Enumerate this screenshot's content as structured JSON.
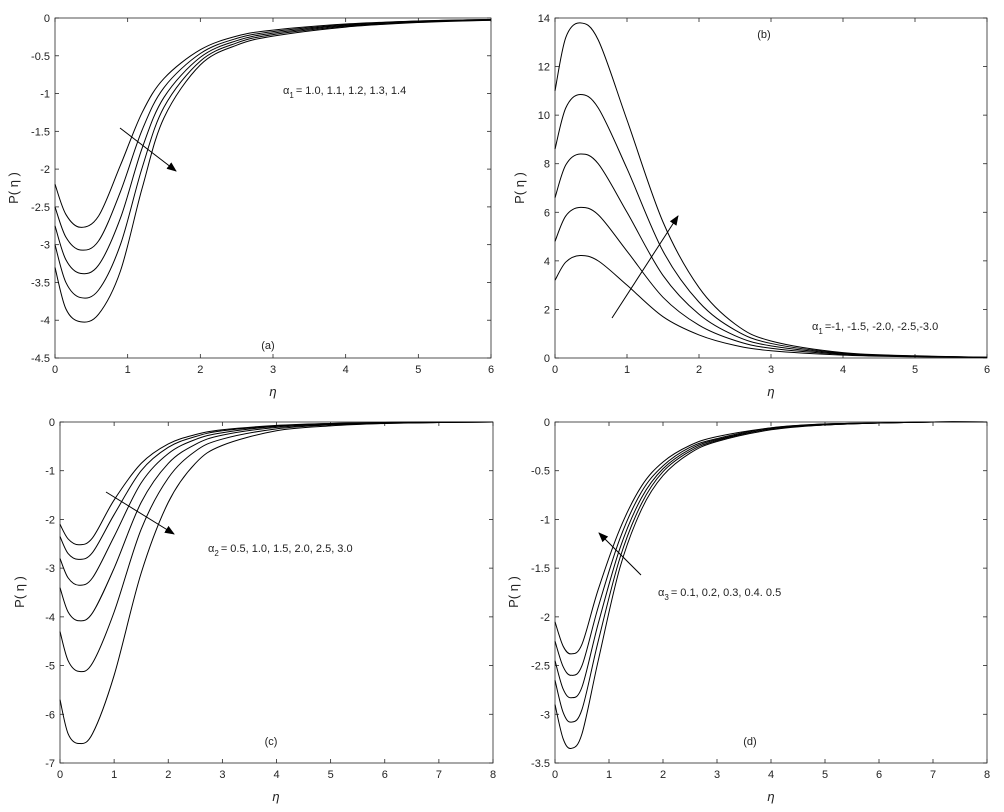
{
  "figure": {
    "panels": [
      {
        "tag": "(a)",
        "annotation_symbol": "α",
        "annotation_sub": "1",
        "annotation_text": "= 1.0, 1.1, 1.2, 1.3, 1.4"
      },
      {
        "tag": "(b)",
        "annotation_symbol": "α",
        "annotation_sub": "1",
        "annotation_text": "=-1, -1.5, -2.0, -2.5,-3.0"
      },
      {
        "tag": "(c)",
        "annotation_symbol": "α",
        "annotation_sub": "2",
        "annotation_text": "= 0.5, 1.0, 1.5, 2.0, 2.5, 3.0"
      },
      {
        "tag": "(d)",
        "annotation_symbol": "α",
        "annotation_sub": "3",
        "annotation_text": "= 0.1, 0.2, 0.3, 0.4. 0.5"
      }
    ]
  },
  "chart_data": [
    {
      "type": "line",
      "panel": "(a)",
      "xlabel": "η",
      "ylabel": "P( η )",
      "xlim": [
        0,
        6
      ],
      "ylim": [
        -4.5,
        0
      ],
      "xticks": [
        "0",
        "1",
        "2",
        "3",
        "4",
        "5",
        "6"
      ],
      "yticks": [
        "0",
        "-0.5",
        "-1",
        "-1.5",
        "-2",
        "-2.5",
        "-3",
        "-3.5",
        "-4",
        "-4.5"
      ],
      "annotation": "α1 = 1.0, 1.1, 1.2, 1.3, 1.4",
      "arrow_direction": "increasing α1 shifts curves right/down",
      "series": [
        {
          "param": 1.0,
          "x": [
            0,
            0.15,
            0.35,
            0.6,
            0.9,
            1.2,
            1.5,
            2.0,
            2.5,
            3.0,
            4.0,
            5.0,
            6.0
          ],
          "y": [
            -2.2,
            -2.6,
            -2.77,
            -2.62,
            -1.95,
            -1.25,
            -0.8,
            -0.42,
            -0.24,
            -0.16,
            -0.08,
            -0.04,
            -0.02
          ]
        },
        {
          "param": 1.1,
          "x": [
            0,
            0.15,
            0.35,
            0.6,
            0.9,
            1.2,
            1.5,
            2.0,
            2.5,
            3.0,
            4.0,
            5.0,
            6.0
          ],
          "y": [
            -2.5,
            -2.9,
            -3.07,
            -2.95,
            -2.3,
            -1.48,
            -0.92,
            -0.47,
            -0.27,
            -0.18,
            -0.09,
            -0.04,
            -0.02
          ]
        },
        {
          "param": 1.2,
          "x": [
            0,
            0.15,
            0.35,
            0.6,
            0.9,
            1.2,
            1.5,
            2.0,
            2.5,
            3.0,
            4.0,
            5.0,
            6.0
          ],
          "y": [
            -2.75,
            -3.2,
            -3.38,
            -3.27,
            -2.65,
            -1.72,
            -1.05,
            -0.52,
            -0.3,
            -0.2,
            -0.1,
            -0.05,
            -0.02
          ]
        },
        {
          "param": 1.3,
          "x": [
            0,
            0.15,
            0.35,
            0.6,
            0.9,
            1.2,
            1.5,
            2.0,
            2.5,
            3.0,
            4.0,
            5.0,
            6.0
          ],
          "y": [
            -3.0,
            -3.5,
            -3.7,
            -3.6,
            -3.0,
            -1.98,
            -1.18,
            -0.57,
            -0.33,
            -0.22,
            -0.11,
            -0.05,
            -0.03
          ]
        },
        {
          "param": 1.4,
          "x": [
            0,
            0.15,
            0.35,
            0.6,
            0.9,
            1.2,
            1.5,
            2.0,
            2.5,
            3.0,
            4.0,
            5.0,
            6.0
          ],
          "y": [
            -3.3,
            -3.85,
            -4.02,
            -3.92,
            -3.35,
            -2.25,
            -1.32,
            -0.62,
            -0.36,
            -0.24,
            -0.12,
            -0.06,
            -0.03
          ]
        }
      ]
    },
    {
      "type": "line",
      "panel": "(b)",
      "xlabel": "η",
      "ylabel": "P( η )",
      "xlim": [
        0,
        6
      ],
      "ylim": [
        0,
        14
      ],
      "xticks": [
        "0",
        "1",
        "2",
        "3",
        "4",
        "5",
        "6"
      ],
      "yticks": [
        "0",
        "2",
        "4",
        "6",
        "8",
        "10",
        "12",
        "14"
      ],
      "annotation": "α1 =-1, -1.5, -2.0, -2.5,-3.0",
      "arrow_direction": "decreasing α1 raises curves",
      "series": [
        {
          "param": -1,
          "x": [
            0,
            0.15,
            0.35,
            0.6,
            1.0,
            1.5,
            2.0,
            2.5,
            3.0,
            4.0,
            5.0,
            6.0
          ],
          "y": [
            3.2,
            3.95,
            4.22,
            4.0,
            3.0,
            1.7,
            0.95,
            0.52,
            0.3,
            0.12,
            0.05,
            0.02
          ]
        },
        {
          "param": -1.5,
          "x": [
            0,
            0.15,
            0.35,
            0.6,
            1.0,
            1.5,
            2.0,
            2.5,
            3.0,
            4.0,
            5.0,
            6.0
          ],
          "y": [
            4.8,
            5.85,
            6.2,
            5.9,
            4.4,
            2.5,
            1.35,
            0.72,
            0.4,
            0.15,
            0.06,
            0.02
          ]
        },
        {
          "param": -2.0,
          "x": [
            0,
            0.15,
            0.35,
            0.6,
            1.0,
            1.5,
            2.0,
            2.5,
            3.0,
            4.0,
            5.0,
            6.0
          ],
          "y": [
            6.6,
            7.95,
            8.4,
            8.0,
            6.0,
            3.4,
            1.8,
            0.92,
            0.5,
            0.18,
            0.07,
            0.03
          ]
        },
        {
          "param": -2.5,
          "x": [
            0,
            0.15,
            0.35,
            0.6,
            1.0,
            1.5,
            2.0,
            2.5,
            3.0,
            4.0,
            5.0,
            6.0
          ],
          "y": [
            8.6,
            10.3,
            10.85,
            10.3,
            7.8,
            4.4,
            2.3,
            1.15,
            0.6,
            0.2,
            0.08,
            0.03
          ]
        },
        {
          "param": -3.0,
          "x": [
            0,
            0.15,
            0.35,
            0.6,
            1.0,
            1.5,
            2.0,
            2.5,
            3.0,
            4.0,
            5.0,
            6.0
          ],
          "y": [
            11.0,
            13.2,
            13.8,
            13.1,
            9.8,
            5.6,
            2.9,
            1.4,
            0.7,
            0.22,
            0.09,
            0.03
          ]
        }
      ]
    },
    {
      "type": "line",
      "panel": "(c)",
      "xlabel": "η",
      "ylabel": "P( η )",
      "xlim": [
        0,
        8
      ],
      "ylim": [
        -7,
        0
      ],
      "xticks": [
        "0",
        "1",
        "2",
        "3",
        "4",
        "5",
        "6",
        "7",
        "8"
      ],
      "yticks": [
        "0",
        "-1",
        "-2",
        "-3",
        "-4",
        "-5",
        "-6",
        "-7"
      ],
      "annotation": "α2 = 0.5, 1.0, 1.5, 2.0, 2.5, 3.0",
      "arrow_direction": "increasing α2 shifts curves right/down",
      "series": [
        {
          "param": 0.5,
          "x": [
            0,
            0.15,
            0.35,
            0.6,
            1.0,
            1.5,
            2.0,
            2.5,
            3.0,
            4.0,
            5.0,
            6.0,
            7.0,
            8.0
          ],
          "y": [
            -2.1,
            -2.4,
            -2.52,
            -2.38,
            -1.6,
            -0.85,
            -0.45,
            -0.26,
            -0.16,
            -0.07,
            -0.03,
            -0.01,
            0,
            0
          ]
        },
        {
          "param": 1.0,
          "x": [
            0,
            0.15,
            0.35,
            0.6,
            1.0,
            1.5,
            2.0,
            2.5,
            3.0,
            4.0,
            5.0,
            6.0,
            7.0,
            8.0
          ],
          "y": [
            -2.35,
            -2.7,
            -2.82,
            -2.68,
            -1.9,
            -1.0,
            -0.52,
            -0.3,
            -0.18,
            -0.08,
            -0.03,
            -0.01,
            0,
            0
          ]
        },
        {
          "param": 1.5,
          "x": [
            0,
            0.15,
            0.35,
            0.6,
            1.0,
            1.5,
            2.0,
            2.5,
            3.0,
            4.0,
            5.0,
            6.0,
            7.0,
            8.0
          ],
          "y": [
            -2.8,
            -3.2,
            -3.35,
            -3.2,
            -2.35,
            -1.25,
            -0.65,
            -0.36,
            -0.22,
            -0.09,
            -0.04,
            -0.02,
            -0.01,
            0
          ]
        },
        {
          "param": 2.0,
          "x": [
            0,
            0.15,
            0.35,
            0.6,
            1.0,
            1.5,
            2.0,
            2.5,
            3.0,
            4.0,
            5.0,
            6.0,
            7.0,
            8.0
          ],
          "y": [
            -3.4,
            -3.9,
            -4.08,
            -3.92,
            -3.0,
            -1.65,
            -0.85,
            -0.46,
            -0.27,
            -0.11,
            -0.05,
            -0.02,
            -0.01,
            0
          ]
        },
        {
          "param": 2.5,
          "x": [
            0,
            0.15,
            0.35,
            0.6,
            1.0,
            1.5,
            2.0,
            2.5,
            3.0,
            4.0,
            5.0,
            6.0,
            7.0,
            8.0
          ],
          "y": [
            -4.3,
            -4.9,
            -5.12,
            -4.95,
            -3.9,
            -2.2,
            -1.15,
            -0.6,
            -0.35,
            -0.14,
            -0.06,
            -0.03,
            -0.01,
            0
          ]
        },
        {
          "param": 3.0,
          "x": [
            0,
            0.15,
            0.35,
            0.6,
            1.0,
            1.5,
            2.0,
            2.5,
            3.0,
            4.0,
            5.0,
            6.0,
            7.0,
            8.0
          ],
          "y": [
            -5.7,
            -6.4,
            -6.6,
            -6.4,
            -5.2,
            -3.1,
            -1.65,
            -0.85,
            -0.48,
            -0.18,
            -0.08,
            -0.03,
            -0.01,
            0
          ]
        }
      ]
    },
    {
      "type": "line",
      "panel": "(d)",
      "xlabel": "η",
      "ylabel": "P( η )",
      "xlim": [
        0,
        8
      ],
      "ylim": [
        -3.5,
        0
      ],
      "xticks": [
        "0",
        "1",
        "2",
        "3",
        "4",
        "5",
        "6",
        "7",
        "8"
      ],
      "yticks": [
        "0",
        "-0.5",
        "-1",
        "-1.5",
        "-2",
        "-2.5",
        "-3",
        "-3.5"
      ],
      "annotation": "α3 = 0.1, 0.2, 0.3, 0.4. 0.5",
      "arrow_direction": "increasing α3 shifts curves left/up",
      "series": [
        {
          "param": 0.1,
          "x": [
            0,
            0.15,
            0.3,
            0.5,
            0.8,
            1.2,
            1.6,
            2.0,
            2.5,
            3.0,
            4.0,
            5.0,
            6.0,
            7.0,
            8.0
          ],
          "y": [
            -2.9,
            -3.25,
            -3.35,
            -3.2,
            -2.45,
            -1.5,
            -0.9,
            -0.55,
            -0.32,
            -0.2,
            -0.08,
            -0.03,
            -0.01,
            0,
            0
          ]
        },
        {
          "param": 0.2,
          "x": [
            0,
            0.15,
            0.3,
            0.5,
            0.8,
            1.2,
            1.6,
            2.0,
            2.5,
            3.0,
            4.0,
            5.0,
            6.0,
            7.0,
            8.0
          ],
          "y": [
            -2.65,
            -2.98,
            -3.08,
            -2.95,
            -2.25,
            -1.4,
            -0.84,
            -0.51,
            -0.3,
            -0.19,
            -0.07,
            -0.03,
            -0.01,
            0,
            0
          ]
        },
        {
          "param": 0.3,
          "x": [
            0,
            0.15,
            0.3,
            0.5,
            0.8,
            1.2,
            1.6,
            2.0,
            2.5,
            3.0,
            4.0,
            5.0,
            6.0,
            7.0,
            8.0
          ],
          "y": [
            -2.45,
            -2.74,
            -2.83,
            -2.72,
            -2.07,
            -1.3,
            -0.78,
            -0.48,
            -0.28,
            -0.18,
            -0.07,
            -0.03,
            -0.01,
            0,
            0
          ]
        },
        {
          "param": 0.4,
          "x": [
            0,
            0.15,
            0.3,
            0.5,
            0.8,
            1.2,
            1.6,
            2.0,
            2.5,
            3.0,
            4.0,
            5.0,
            6.0,
            7.0,
            8.0
          ],
          "y": [
            -2.25,
            -2.51,
            -2.6,
            -2.5,
            -1.9,
            -1.2,
            -0.72,
            -0.45,
            -0.26,
            -0.17,
            -0.06,
            -0.02,
            -0.01,
            0,
            0
          ]
        },
        {
          "param": 0.5,
          "x": [
            0,
            0.15,
            0.3,
            0.5,
            0.8,
            1.2,
            1.6,
            2.0,
            2.5,
            3.0,
            4.0,
            5.0,
            6.0,
            7.0,
            8.0
          ],
          "y": [
            -2.05,
            -2.3,
            -2.38,
            -2.28,
            -1.72,
            -1.1,
            -0.66,
            -0.41,
            -0.24,
            -0.15,
            -0.06,
            -0.02,
            -0.01,
            0,
            0
          ]
        }
      ]
    }
  ]
}
